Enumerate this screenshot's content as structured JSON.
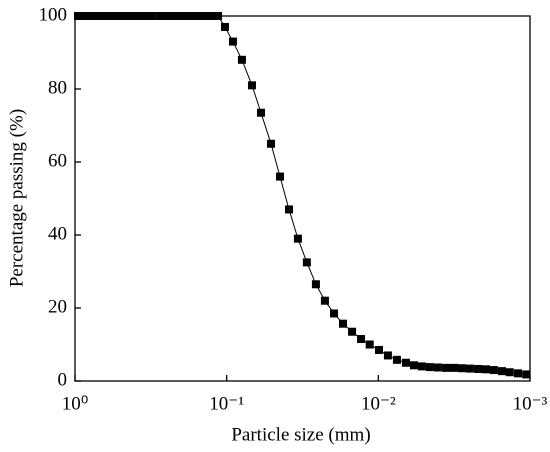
{
  "chart_data": {
    "type": "line",
    "xlabel": "Particle size (mm)",
    "ylabel": "Percentage passing (%)",
    "xscale": "log",
    "xlim": [
      1,
      0.001
    ],
    "ylim": [
      0,
      100
    ],
    "xticks": [
      {
        "value": 1,
        "label": "10⁰"
      },
      {
        "value": 0.1,
        "label": "10⁻¹"
      },
      {
        "value": 0.01,
        "label": "10⁻²"
      },
      {
        "value": 0.001,
        "label": "10⁻³"
      }
    ],
    "yticks": [
      0,
      20,
      40,
      60,
      80,
      100
    ],
    "series": [
      {
        "color": "#000000",
        "marker": "square",
        "x": [
          0.955,
          0.846,
          0.761,
          0.684,
          0.615,
          0.545,
          0.49,
          0.434,
          0.39,
          0.346,
          0.311,
          0.275,
          0.247,
          0.219,
          0.197,
          0.1745,
          0.157,
          0.141,
          0.127,
          0.114,
          0.1026,
          0.0909,
          0.0793,
          0.0681,
          0.0594,
          0.051,
          0.0445,
          0.0388,
          0.0339,
          0.0296,
          0.0258,
          0.0225,
          0.0196,
          0.0171,
          0.0149,
          0.013,
          0.0114,
          0.0099,
          0.00865,
          0.00754,
          0.00658,
          0.00582,
          0.00516,
          0.00457,
          0.00405,
          0.00358,
          0.00317,
          0.00281,
          0.00249,
          0.0022,
          0.00195,
          0.00173,
          0.00153,
          0.00136,
          0.0012,
          0.00106
        ],
        "values": [
          100,
          100,
          100,
          100,
          100,
          100,
          100,
          100,
          100,
          100,
          100,
          100,
          100,
          100,
          100,
          100,
          100,
          100,
          100,
          100,
          97,
          93,
          88,
          81,
          73.5,
          65,
          56,
          47,
          39,
          32.5,
          26.5,
          22,
          18.5,
          15.7,
          13.5,
          11.5,
          10,
          8.5,
          7,
          5.8,
          5,
          4.3,
          4,
          3.8,
          3.7,
          3.6,
          3.6,
          3.5,
          3.4,
          3.3,
          3.2,
          3,
          2.7,
          2.4,
          2.1,
          1.8
        ]
      }
    ]
  }
}
